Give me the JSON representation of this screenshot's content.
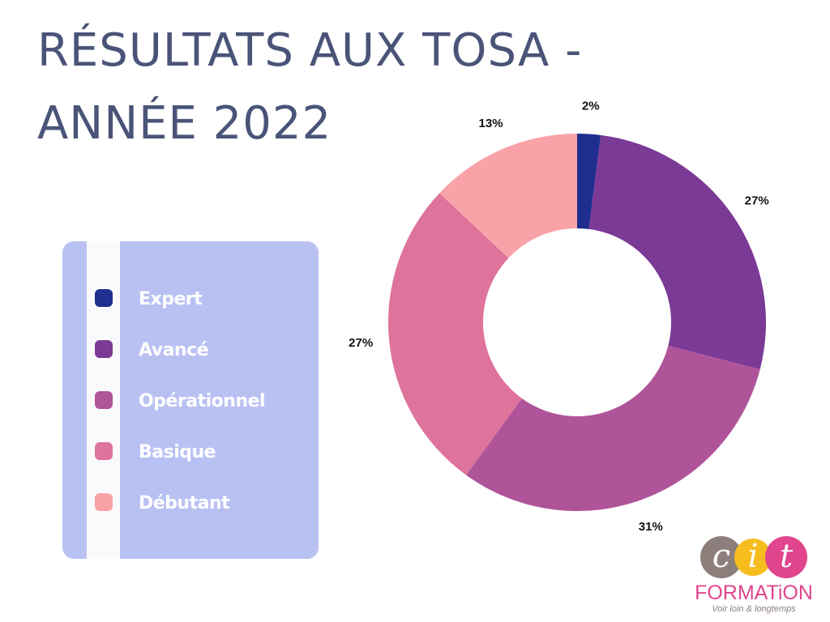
{
  "chart_data": {
    "type": "donut",
    "title": "RÉSULTATS AUX TOSA - ANNÉE 2022",
    "categories": [
      "Expert",
      "Avancé",
      "Opérationnel",
      "Basique",
      "Débutant"
    ],
    "values": [
      2,
      27,
      31,
      27,
      13
    ],
    "value_labels": [
      "2%",
      "27%",
      "31%",
      "27%",
      "13%"
    ],
    "colors": [
      "#1f2e8f",
      "#7b3a96",
      "#b0549a",
      "#de739c",
      "#f9a3a8"
    ]
  },
  "logo": {
    "letters": [
      "c",
      "i",
      "t"
    ],
    "name": "FORMATiON",
    "tagline": "Voir loin & longtemps"
  }
}
